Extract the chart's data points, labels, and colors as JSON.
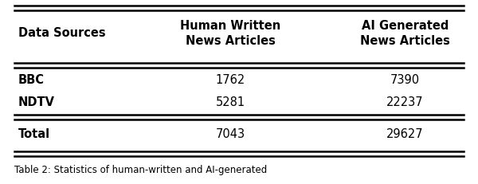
{
  "col_headers": [
    "Data Sources",
    "Human Written\nNews Articles",
    "AI Generated\nNews Articles"
  ],
  "rows": [
    [
      "BBC",
      "1762",
      "7390"
    ],
    [
      "NDTV",
      "5281",
      "22237"
    ]
  ],
  "total_row": [
    "Total",
    "7043",
    "29627"
  ],
  "caption": "Table 2: Statistics of human-written and AI-generated",
  "fig_width": 6.0,
  "fig_height": 2.32,
  "dpi": 100,
  "background_color": "#ffffff",
  "text_color": "#000000",
  "fontsize": 10.5
}
